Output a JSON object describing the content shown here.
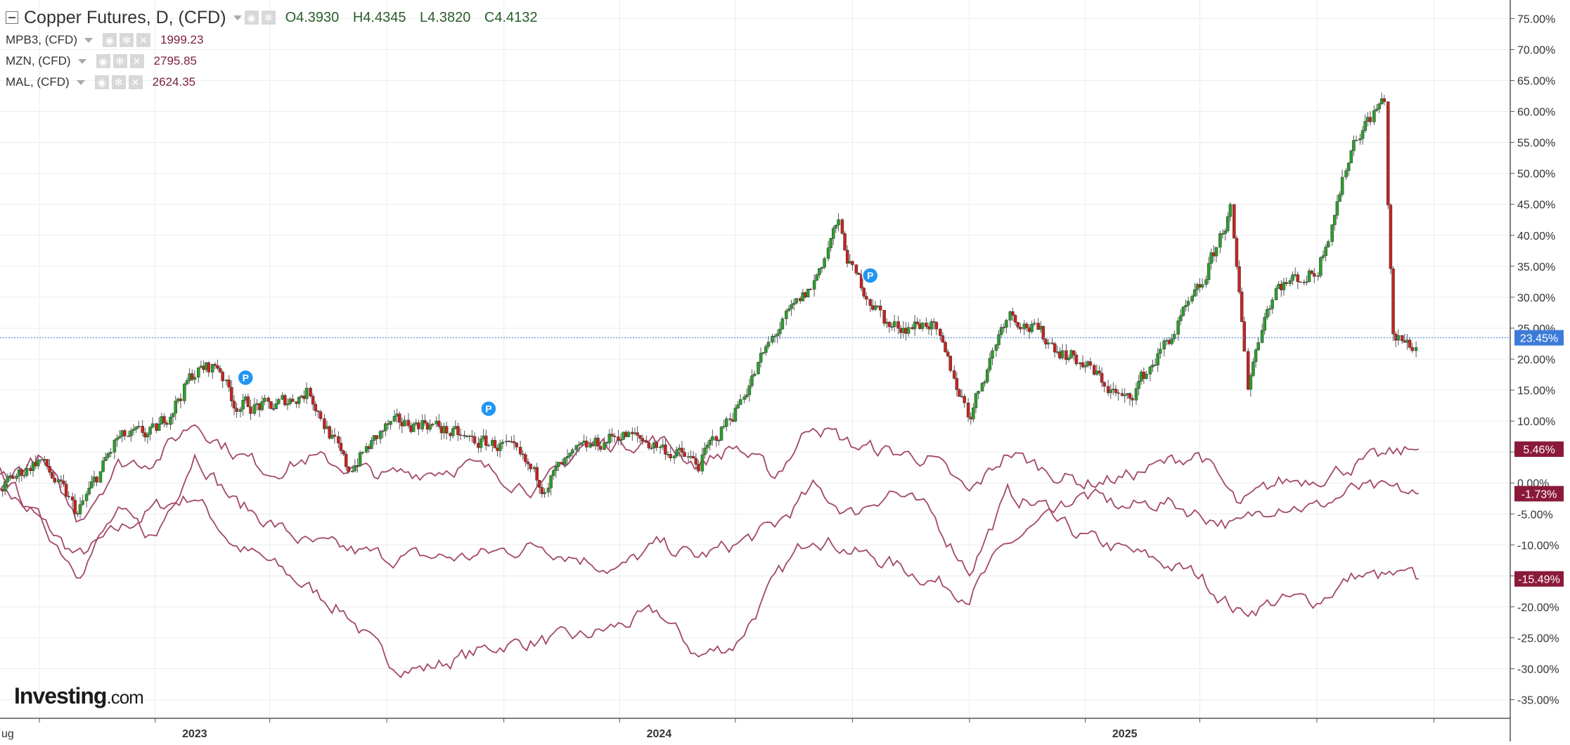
{
  "legend": {
    "main": {
      "title": "Copper Futures, D, (CFD)",
      "open_label": "O",
      "open": "4.3930",
      "high_label": "H",
      "high": "4.4345",
      "low_label": "L",
      "low": "4.3820",
      "close_label": "C",
      "close": "4.4132"
    },
    "studies": [
      {
        "name": "MPB3, (CFD)",
        "value": "1999.23"
      },
      {
        "name": "MZN, (CFD)",
        "value": "2795.85"
      },
      {
        "name": "MAL, (CFD)",
        "value": "2624.35"
      }
    ]
  },
  "brand": {
    "name": "Investing",
    "domain": ".com"
  },
  "colors": {
    "up": "#2c9e2c",
    "down": "#c8231f",
    "overlay": "#a3476b",
    "last_price": "#3d7bd9",
    "badge_dark": "#8b1a3a",
    "marker": "#2196f3"
  },
  "chart_data": {
    "type": "line",
    "x_ticks": [
      "ug",
      "2023",
      "2024",
      "2025"
    ],
    "y_ticks": [
      "75.00%",
      "70.00%",
      "65.00%",
      "60.00%",
      "55.00%",
      "50.00%",
      "45.00%",
      "40.00%",
      "35.00%",
      "30.00%",
      "25.00%",
      "20.00%",
      "15.00%",
      "10.00%",
      "5.00%",
      "0.00%",
      "-5.00%",
      "-10.00%",
      "-15.00%",
      "-20.00%",
      "-25.00%",
      "-30.00%",
      "-35.00%"
    ],
    "ylim": [
      -38,
      78
    ],
    "xlim": [
      "2022-08-01",
      "2025-10-31"
    ],
    "grid": true,
    "last_price_label": "23.45%",
    "last_price_value": 23.45,
    "series_end_labels": [
      "5.46%",
      "-1.73%",
      "-15.49%"
    ],
    "series": [
      {
        "name": "Copper Futures, D, (CFD)",
        "style": "candlestick",
        "points": [
          [
            "2022-08-01",
            -1
          ],
          [
            "2022-09-01",
            4
          ],
          [
            "2022-10-01",
            -5
          ],
          [
            "2022-11-01",
            7
          ],
          [
            "2022-12-01",
            8
          ],
          [
            "2023-01-01",
            18
          ],
          [
            "2023-01-20",
            19
          ],
          [
            "2023-02-01",
            13
          ],
          [
            "2023-03-01",
            12
          ],
          [
            "2023-04-01",
            15
          ],
          [
            "2023-05-01",
            2
          ],
          [
            "2023-06-01",
            9
          ],
          [
            "2023-07-01",
            10
          ],
          [
            "2023-08-01",
            7
          ],
          [
            "2023-09-01",
            6
          ],
          [
            "2023-10-01",
            0
          ],
          [
            "2023-11-01",
            5
          ],
          [
            "2023-12-01",
            8
          ],
          [
            "2024-01-01",
            6
          ],
          [
            "2024-02-01",
            3
          ],
          [
            "2024-03-01",
            12
          ],
          [
            "2024-04-01",
            24
          ],
          [
            "2024-05-01",
            32
          ],
          [
            "2024-05-20",
            42
          ],
          [
            "2024-06-01",
            34
          ],
          [
            "2024-07-01",
            25
          ],
          [
            "2024-08-01",
            26
          ],
          [
            "2024-09-01",
            11
          ],
          [
            "2024-10-01",
            28
          ],
          [
            "2024-11-01",
            23
          ],
          [
            "2024-12-01",
            19
          ],
          [
            "2025-01-01",
            13
          ],
          [
            "2025-02-01",
            22
          ],
          [
            "2025-03-01",
            31
          ],
          [
            "2025-03-25",
            44
          ],
          [
            "2025-04-08",
            16
          ],
          [
            "2025-04-20",
            27
          ],
          [
            "2025-05-01",
            32
          ],
          [
            "2025-06-01",
            34
          ],
          [
            "2025-07-01",
            56
          ],
          [
            "2025-07-24",
            62
          ],
          [
            "2025-07-31",
            23
          ],
          [
            "2025-08-20",
            22
          ]
        ]
      },
      {
        "name": "MPB3, (CFD)",
        "style": "line",
        "points": [
          [
            "2022-08-01",
            0
          ],
          [
            "2022-10-01",
            -12
          ],
          [
            "2022-12-01",
            -4
          ],
          [
            "2023-01-01",
            -2
          ],
          [
            "2023-02-01",
            -10
          ],
          [
            "2023-03-01",
            -13
          ],
          [
            "2023-05-01",
            -21
          ],
          [
            "2023-06-01",
            -29
          ],
          [
            "2023-07-01",
            -30
          ],
          [
            "2023-09-01",
            -26
          ],
          [
            "2023-11-01",
            -25
          ],
          [
            "2024-01-01",
            -21
          ],
          [
            "2024-02-01",
            -28
          ],
          [
            "2024-03-01",
            -26
          ],
          [
            "2024-04-01",
            -16
          ],
          [
            "2024-05-01",
            -8
          ],
          [
            "2024-06-01",
            -11
          ],
          [
            "2024-07-01",
            -13
          ],
          [
            "2024-09-01",
            -18
          ],
          [
            "2024-10-01",
            -10
          ],
          [
            "2024-11-01",
            -6
          ],
          [
            "2024-12-01",
            -9
          ],
          [
            "2025-01-01",
            -11
          ],
          [
            "2025-02-01",
            -13
          ],
          [
            "2025-03-01",
            -15
          ],
          [
            "2025-04-01",
            -21
          ],
          [
            "2025-05-01",
            -19
          ],
          [
            "2025-06-01",
            -19
          ],
          [
            "2025-07-01",
            -15
          ],
          [
            "2025-08-20",
            -15.49
          ]
        ]
      },
      {
        "name": "MZN, (CFD)",
        "style": "line",
        "points": [
          [
            "2022-08-01",
            2
          ],
          [
            "2022-09-01",
            -6
          ],
          [
            "2022-10-01",
            -14
          ],
          [
            "2022-11-01",
            -5
          ],
          [
            "2022-12-01",
            -9
          ],
          [
            "2023-01-01",
            5
          ],
          [
            "2023-02-01",
            -3
          ],
          [
            "2023-04-01",
            -10
          ],
          [
            "2023-06-01",
            -12
          ],
          [
            "2023-08-01",
            -12
          ],
          [
            "2023-10-01",
            -10
          ],
          [
            "2023-12-01",
            -14
          ],
          [
            "2024-01-01",
            -10
          ],
          [
            "2024-02-01",
            -12
          ],
          [
            "2024-03-01",
            -10
          ],
          [
            "2024-04-01",
            -7
          ],
          [
            "2024-05-01",
            -1
          ],
          [
            "2024-06-01",
            -5
          ],
          [
            "2024-07-01",
            -1
          ],
          [
            "2024-08-01",
            -5
          ],
          [
            "2024-09-01",
            -14
          ],
          [
            "2024-10-01",
            -2
          ],
          [
            "2024-11-01",
            -4
          ],
          [
            "2024-12-01",
            -2
          ],
          [
            "2025-01-01",
            -4
          ],
          [
            "2025-02-01",
            -3
          ],
          [
            "2025-03-01",
            -5
          ],
          [
            "2025-04-01",
            -7
          ],
          [
            "2025-05-01",
            -3
          ],
          [
            "2025-06-01",
            -4
          ],
          [
            "2025-07-01",
            -1
          ],
          [
            "2025-08-20",
            -1.73
          ]
        ]
      },
      {
        "name": "MAL, (CFD)",
        "style": "line",
        "points": [
          [
            "2022-08-01",
            1
          ],
          [
            "2022-09-01",
            4
          ],
          [
            "2022-10-01",
            -6
          ],
          [
            "2022-11-01",
            3
          ],
          [
            "2022-12-01",
            4
          ],
          [
            "2023-01-01",
            10
          ],
          [
            "2023-02-01",
            5
          ],
          [
            "2023-03-01",
            2
          ],
          [
            "2023-04-01",
            4
          ],
          [
            "2023-06-01",
            1
          ],
          [
            "2023-08-01",
            3
          ],
          [
            "2023-10-01",
            -1
          ],
          [
            "2023-11-01",
            6
          ],
          [
            "2024-01-01",
            7
          ],
          [
            "2024-02-01",
            3
          ],
          [
            "2024-03-01",
            6
          ],
          [
            "2024-04-01",
            1
          ],
          [
            "2024-05-01",
            10
          ],
          [
            "2024-06-01",
            6
          ],
          [
            "2024-07-01",
            5
          ],
          [
            "2024-08-01",
            4
          ],
          [
            "2024-09-01",
            -2
          ],
          [
            "2024-10-01",
            5
          ],
          [
            "2024-11-01",
            2
          ],
          [
            "2024-12-01",
            0
          ],
          [
            "2025-01-01",
            1
          ],
          [
            "2025-02-01",
            3
          ],
          [
            "2025-03-01",
            5
          ],
          [
            "2025-04-01",
            -4
          ],
          [
            "2025-05-01",
            0
          ],
          [
            "2025-06-01",
            1
          ],
          [
            "2025-07-01",
            3
          ],
          [
            "2025-08-20",
            5.46
          ]
        ]
      }
    ],
    "annotations": [
      {
        "label": "P",
        "date": "2023-02-10",
        "y": 17
      },
      {
        "label": "P",
        "date": "2023-08-20",
        "y": 12
      },
      {
        "label": "P",
        "date": "2024-06-15",
        "y": 33.5
      }
    ]
  }
}
